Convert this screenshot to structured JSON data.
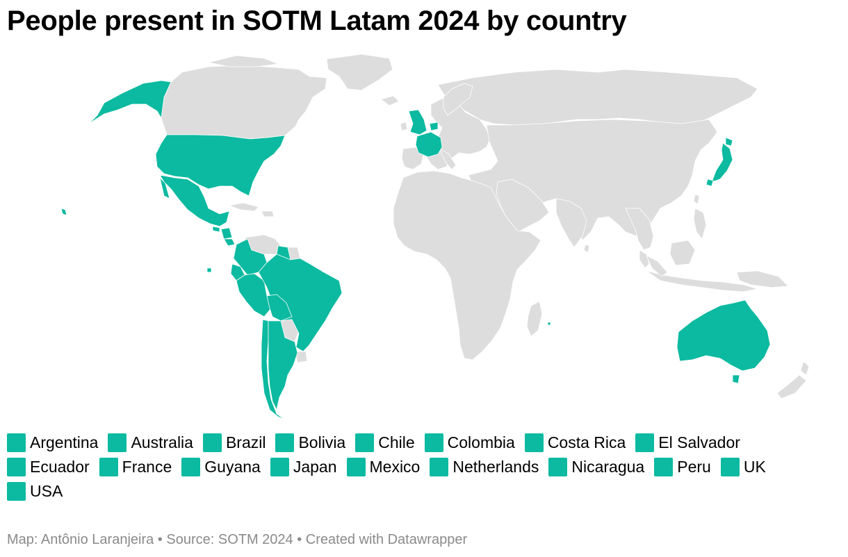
{
  "title": "People present in SOTM Latam 2024 by country",
  "colors": {
    "highlight": "#0bbaa0",
    "land": "#dddddd",
    "border": "#ffffff"
  },
  "legend": [
    "Argentina",
    "Australia",
    "Brazil",
    "Bolivia",
    "Chile",
    "Colombia",
    "Costa Rica",
    "El Salvador",
    "Ecuador",
    "France",
    "Guyana",
    "Japan",
    "Mexico",
    "Netherlands",
    "Nicaragua",
    "Peru",
    "UK",
    "USA"
  ],
  "footer": "Map: Antônio Laranjeira • Source: SOTM 2024 • Created with Datawrapper"
}
